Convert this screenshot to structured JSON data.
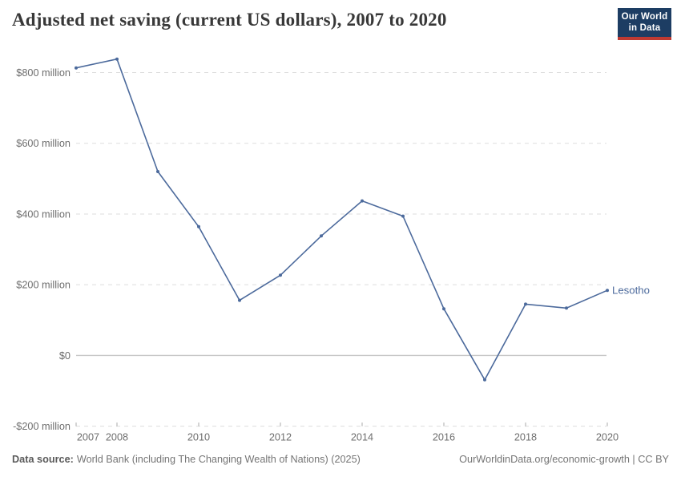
{
  "header": {
    "title": "Adjusted net saving (current US dollars), 2007 to 2020",
    "logo": {
      "line1": "Our World",
      "line2": "in Data"
    }
  },
  "chart_data": {
    "type": "line",
    "title": "Adjusted net saving (current US dollars), 2007 to 2020",
    "unit": "current US$, millions",
    "x": [
      2007,
      2008,
      2009,
      2010,
      2011,
      2012,
      2013,
      2014,
      2015,
      2016,
      2017,
      2018,
      2019,
      2020
    ],
    "series": [
      {
        "name": "Lesotho",
        "color": "#4c6a9c",
        "values": [
          813,
          838,
          520,
          364,
          156,
          227,
          338,
          437,
          394,
          132,
          -69,
          145,
          134,
          184
        ]
      }
    ],
    "xticks": [
      2007,
      2008,
      2010,
      2012,
      2014,
      2016,
      2018,
      2020
    ],
    "yticks": [
      {
        "value": 800,
        "label": "$800 million"
      },
      {
        "value": 600,
        "label": "$600 million"
      },
      {
        "value": 400,
        "label": "$400 million"
      },
      {
        "value": 200,
        "label": "$200 million"
      },
      {
        "value": 0,
        "label": "$0"
      },
      {
        "value": -200,
        "label": "-$200 million"
      }
    ],
    "ylim": [
      -200,
      870
    ],
    "xlim": [
      2007,
      2020
    ],
    "grid": "horizontal-dashed",
    "legend": "label-at-line-end",
    "colors": {
      "grid": "#dddddd",
      "zero_line": "#c6c6c6",
      "tick_mark": "#a8a8a8",
      "tick_text": "#6e6e6e"
    }
  },
  "footer": {
    "datasource_label": "Data source:",
    "datasource_text": "World Bank (including The Changing Wealth of Nations) (2025)",
    "link_text": "OurWorldinData.org/economic-growth | CC BY"
  }
}
